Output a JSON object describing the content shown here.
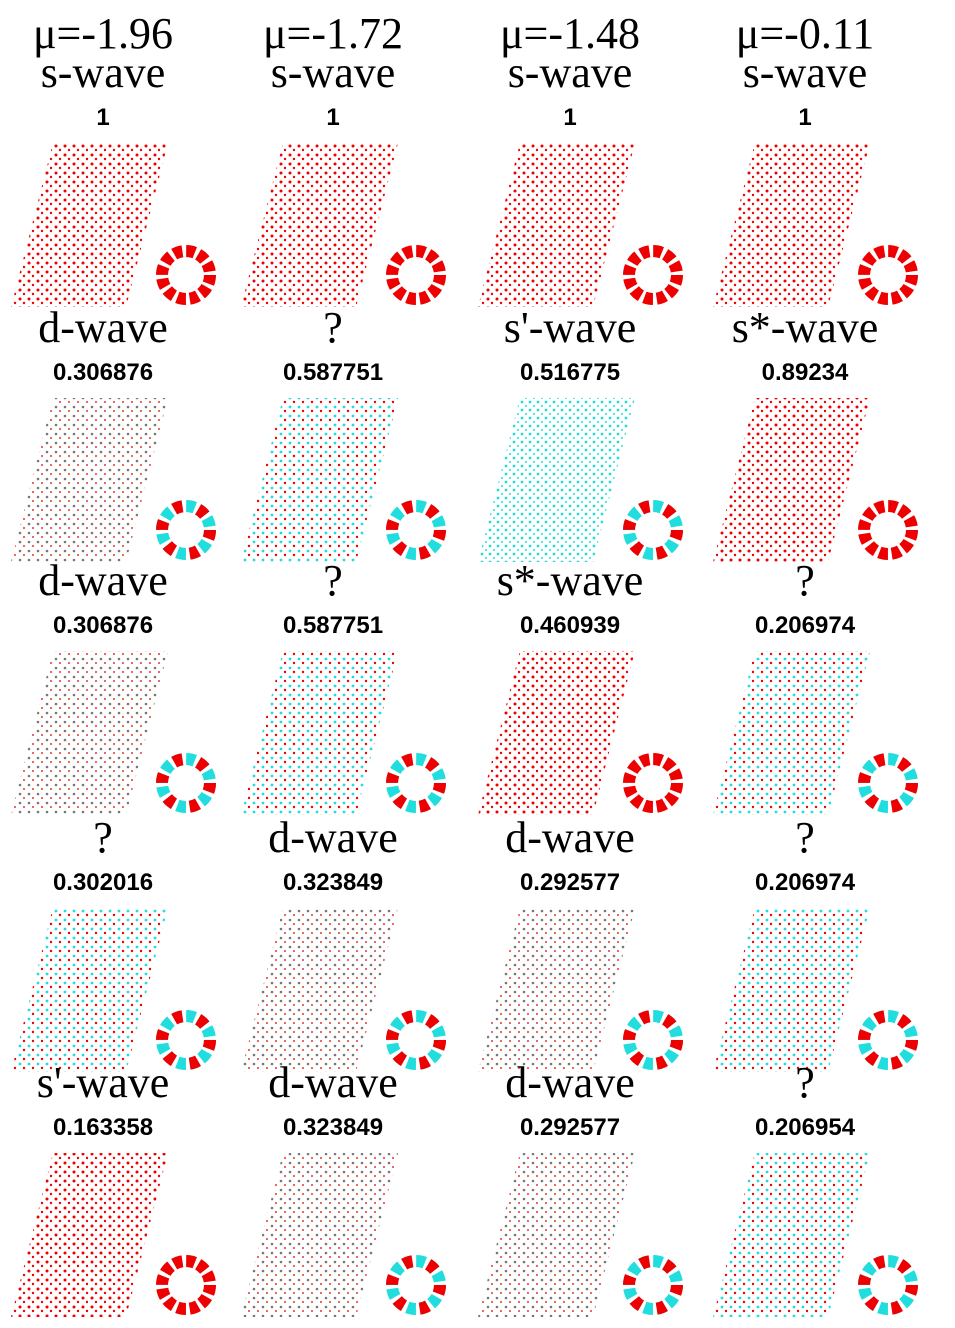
{
  "columns": [
    {
      "mu": "μ=-1.96",
      "cells": [
        {
          "label": "s-wave",
          "value": "1"
        },
        {
          "label": "d-wave",
          "value": "0.306876"
        },
        {
          "label": "d-wave",
          "value": "0.306876"
        },
        {
          "label": "?",
          "value": "0.302016"
        },
        {
          "label": "s'-wave",
          "value": "0.163358"
        }
      ]
    },
    {
      "mu": "μ=-1.72",
      "cells": [
        {
          "label": "s-wave",
          "value": "1"
        },
        {
          "label": "?",
          "value": "0.587751"
        },
        {
          "label": "?",
          "value": "0.587751"
        },
        {
          "label": "d-wave",
          "value": "0.323849"
        },
        {
          "label": "d-wave",
          "value": "0.323849"
        }
      ]
    },
    {
      "mu": "μ=-1.48",
      "cells": [
        {
          "label": "s-wave",
          "value": "1"
        },
        {
          "label": "s'-wave",
          "value": "0.516775"
        },
        {
          "label": "s*-wave",
          "value": "0.460939"
        },
        {
          "label": "d-wave",
          "value": "0.292577"
        },
        {
          "label": "d-wave",
          "value": "0.292577"
        }
      ]
    },
    {
      "mu": "μ=-0.11",
      "cells": [
        {
          "label": "s-wave",
          "value": "1"
        },
        {
          "label": "s*-wave",
          "value": "0.89234"
        },
        {
          "label": "?",
          "value": "0.206974"
        },
        {
          "label": "?",
          "value": "0.206974"
        },
        {
          "label": "?",
          "value": "0.206954"
        }
      ]
    }
  ]
}
